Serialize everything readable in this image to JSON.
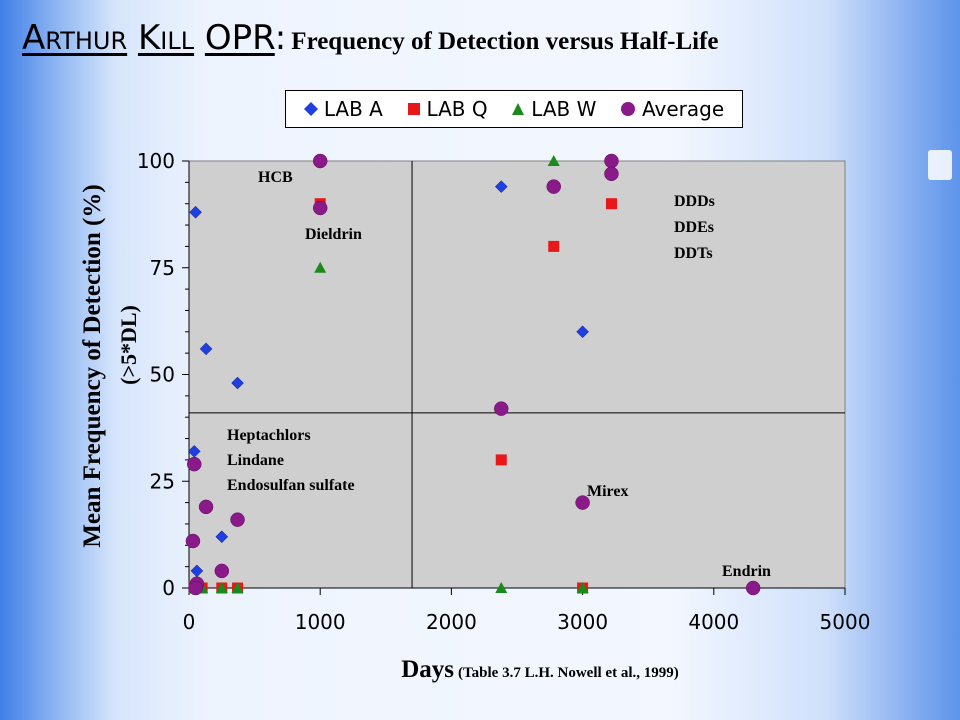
{
  "header": {
    "brand_word1": "Arthur",
    "brand_word2": "Kill",
    "brand_word3": "OPR",
    "brand_colon": ":",
    "subtitle": "Frequency of Detection versus Half-Life"
  },
  "axes": {
    "ylabel": "Mean Frequency of Detection (%)",
    "ylabel_sub": "(>5*DL)",
    "xlabel": "Days",
    "xlabel_citation": "(Table 3.7 L.H. Nowell et al., 1999)"
  },
  "annotations": {
    "hcb": "HCB",
    "dieldrin": "Dieldrin",
    "ddd": "DDDs",
    "dde": "DDEs",
    "ddt": "DDTs",
    "heptachlors": "Heptachlors",
    "lindane": "Lindane",
    "endosulfan": "Endosulfan sulfate",
    "mirex": "Mirex",
    "endrin": "Endrin"
  },
  "colors": {
    "lab_a": "#1f3fe0",
    "lab_q": "#e8181a",
    "lab_w": "#1a8a1a",
    "average": "#8a1a8a",
    "plot_bg": "#cfcfcf"
  },
  "chart_data": {
    "type": "scatter",
    "xlim": [
      0,
      5000
    ],
    "ylim": [
      0,
      100
    ],
    "x_ticks": [
      0,
      1000,
      2000,
      3000,
      4000,
      5000
    ],
    "y_ticks": [
      0,
      25,
      50,
      75,
      100
    ],
    "x_tick_labels": [
      "0",
      "1000",
      "2000",
      "3000",
      "4000",
      "5000"
    ],
    "y_tick_labels": [
      "0",
      "25",
      "50",
      "75",
      "100"
    ],
    "reference_lines": {
      "x": 1700,
      "y": 41
    },
    "legend_position": "top",
    "grid": false,
    "series": [
      {
        "name": "LAB A",
        "marker": "diamond",
        "points": [
          [
            50,
            88
          ],
          [
            130,
            56
          ],
          [
            370,
            48
          ],
          [
            40,
            32
          ],
          [
            250,
            12
          ],
          [
            60,
            4
          ],
          [
            2380,
            94
          ],
          [
            3000,
            60
          ]
        ]
      },
      {
        "name": "LAB Q",
        "marker": "square",
        "points": [
          [
            1000,
            90
          ],
          [
            2380,
            30
          ],
          [
            2780,
            80
          ],
          [
            3220,
            90
          ],
          [
            40,
            0
          ],
          [
            100,
            0
          ],
          [
            250,
            0
          ],
          [
            370,
            0
          ],
          [
            3000,
            0
          ]
        ]
      },
      {
        "name": "LAB W",
        "marker": "triangle",
        "points": [
          [
            1000,
            75
          ],
          [
            2780,
            100
          ],
          [
            40,
            0
          ],
          [
            100,
            0
          ],
          [
            250,
            0
          ],
          [
            370,
            0
          ],
          [
            2380,
            0
          ],
          [
            3000,
            0
          ]
        ]
      },
      {
        "name": "Average",
        "marker": "circle",
        "points": [
          [
            1000,
            100
          ],
          [
            1000,
            89
          ],
          [
            2380,
            42
          ],
          [
            2780,
            94
          ],
          [
            3220,
            100
          ],
          [
            3220,
            97
          ],
          [
            3000,
            20
          ],
          [
            4300,
            0
          ],
          [
            40,
            29
          ],
          [
            130,
            19
          ],
          [
            370,
            16
          ],
          [
            30,
            11
          ],
          [
            250,
            4
          ],
          [
            60,
            1
          ],
          [
            50,
            0
          ]
        ]
      }
    ]
  }
}
